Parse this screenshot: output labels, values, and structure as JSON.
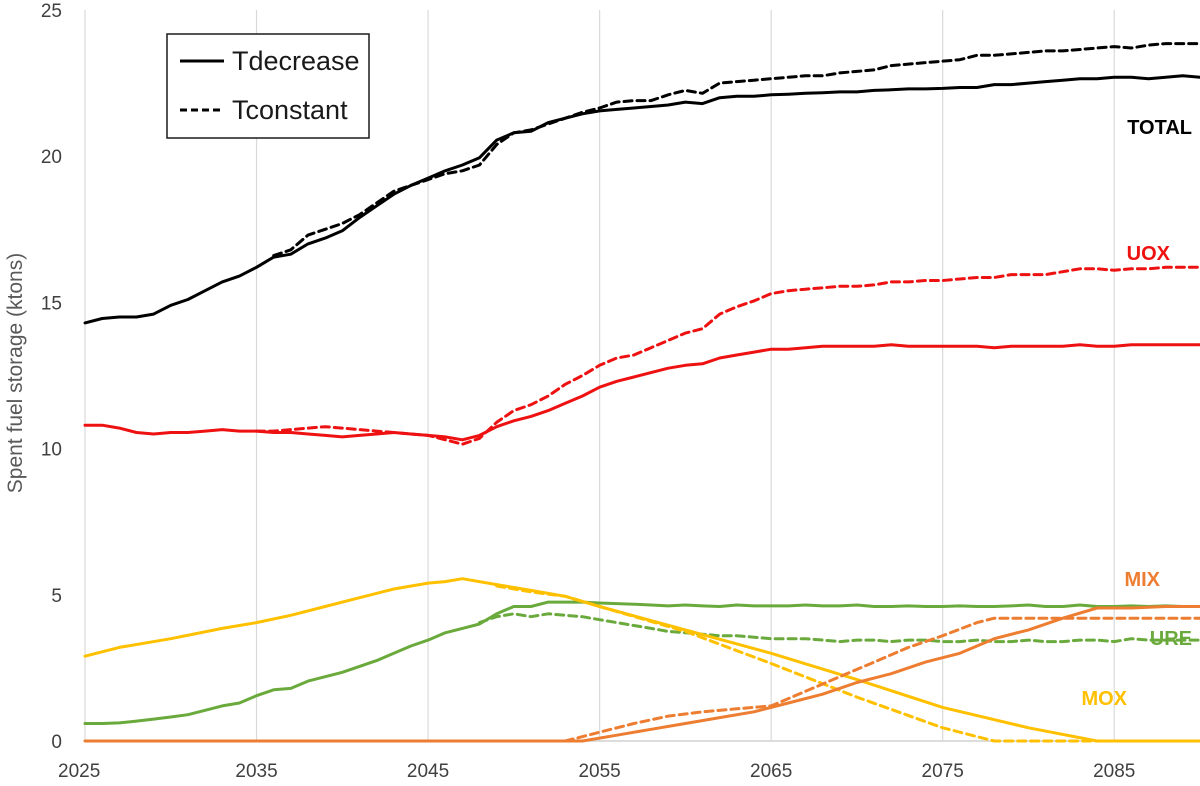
{
  "chart_data": {
    "type": "line",
    "title": "",
    "xlabel": "",
    "ylabel": "Spent fuel storage (ktons)",
    "xlim": [
      2025,
      2090
    ],
    "ylim": [
      0,
      25
    ],
    "xticks": [
      2025,
      2035,
      2045,
      2055,
      2065,
      2075,
      2085
    ],
    "yticks": [
      0,
      5,
      10,
      15,
      20,
      25
    ],
    "grid": "vertical",
    "legend": {
      "placement": "top-left",
      "entries": [
        {
          "label": "Tdecrease",
          "style": "solid"
        },
        {
          "label": "Tconstant",
          "style": "dashed"
        }
      ]
    },
    "series": [
      {
        "group": "TOTAL",
        "scenario": "Tdecrease",
        "color": "#000000",
        "style": "solid",
        "x": [
          2025,
          2026,
          2027,
          2028,
          2029,
          2030,
          2031,
          2032,
          2033,
          2034,
          2035,
          2036,
          2037,
          2038,
          2039,
          2040,
          2041,
          2042,
          2043,
          2044,
          2045,
          2046,
          2047,
          2048,
          2049,
          2050,
          2051,
          2052,
          2053,
          2054,
          2055,
          2056,
          2057,
          2058,
          2059,
          2060,
          2061,
          2062,
          2063,
          2064,
          2065,
          2066,
          2067,
          2068,
          2069,
          2070,
          2071,
          2072,
          2073,
          2074,
          2075,
          2076,
          2077,
          2078,
          2079,
          2080,
          2081,
          2082,
          2083,
          2084,
          2085,
          2086,
          2087,
          2088,
          2089,
          2090
        ],
        "y": [
          14.3,
          14.45,
          14.5,
          14.5,
          14.6,
          14.9,
          15.1,
          15.4,
          15.7,
          15.9,
          16.2,
          16.55,
          16.65,
          17.0,
          17.2,
          17.45,
          17.9,
          18.3,
          18.7,
          19.0,
          19.25,
          19.5,
          19.7,
          19.95,
          20.55,
          20.8,
          20.85,
          21.15,
          21.3,
          21.45,
          21.55,
          21.6,
          21.65,
          21.7,
          21.75,
          21.85,
          21.8,
          22.0,
          22.05,
          22.05,
          22.1,
          22.12,
          22.15,
          22.17,
          22.2,
          22.2,
          22.25,
          22.27,
          22.3,
          22.3,
          22.32,
          22.35,
          22.35,
          22.45,
          22.45,
          22.5,
          22.55,
          22.6,
          22.65,
          22.65,
          22.7,
          22.7,
          22.65,
          22.7,
          22.75,
          22.7
        ]
      },
      {
        "group": "TOTAL",
        "scenario": "Tconstant",
        "color": "#000000",
        "style": "dashed",
        "x": [
          2036,
          2037,
          2038,
          2039,
          2040,
          2041,
          2042,
          2043,
          2044,
          2045,
          2046,
          2047,
          2048,
          2049,
          2050,
          2051,
          2052,
          2053,
          2054,
          2055,
          2056,
          2057,
          2058,
          2059,
          2060,
          2061,
          2062,
          2063,
          2064,
          2065,
          2066,
          2067,
          2068,
          2069,
          2070,
          2071,
          2072,
          2073,
          2074,
          2075,
          2076,
          2077,
          2078,
          2079,
          2080,
          2081,
          2082,
          2083,
          2084,
          2085,
          2086,
          2087,
          2088,
          2089,
          2090
        ],
        "y": [
          16.6,
          16.8,
          17.3,
          17.5,
          17.7,
          18.0,
          18.4,
          18.8,
          19.0,
          19.2,
          19.4,
          19.5,
          19.7,
          20.4,
          20.8,
          20.9,
          21.1,
          21.3,
          21.5,
          21.65,
          21.85,
          21.9,
          21.9,
          22.1,
          22.25,
          22.15,
          22.5,
          22.55,
          22.6,
          22.65,
          22.7,
          22.75,
          22.75,
          22.85,
          22.9,
          22.95,
          23.1,
          23.15,
          23.2,
          23.25,
          23.3,
          23.45,
          23.45,
          23.5,
          23.55,
          23.6,
          23.6,
          23.65,
          23.7,
          23.75,
          23.7,
          23.8,
          23.85,
          23.85,
          23.85
        ]
      },
      {
        "group": "UOX",
        "scenario": "Tdecrease",
        "color": "#ee1111",
        "style": "solid",
        "x": [
          2025,
          2026,
          2027,
          2028,
          2029,
          2030,
          2031,
          2032,
          2033,
          2034,
          2035,
          2036,
          2037,
          2038,
          2039,
          2040,
          2041,
          2042,
          2043,
          2044,
          2045,
          2046,
          2047,
          2048,
          2049,
          2050,
          2051,
          2052,
          2053,
          2054,
          2055,
          2056,
          2057,
          2058,
          2059,
          2060,
          2061,
          2062,
          2063,
          2064,
          2065,
          2066,
          2067,
          2068,
          2069,
          2070,
          2071,
          2072,
          2073,
          2074,
          2075,
          2076,
          2077,
          2078,
          2079,
          2080,
          2081,
          2082,
          2083,
          2084,
          2085,
          2086,
          2087,
          2088,
          2089,
          2090
        ],
        "y": [
          10.8,
          10.8,
          10.7,
          10.55,
          10.5,
          10.55,
          10.55,
          10.6,
          10.65,
          10.6,
          10.6,
          10.55,
          10.55,
          10.5,
          10.45,
          10.4,
          10.45,
          10.5,
          10.55,
          10.5,
          10.45,
          10.4,
          10.3,
          10.45,
          10.75,
          10.95,
          11.1,
          11.3,
          11.55,
          11.8,
          12.1,
          12.3,
          12.45,
          12.6,
          12.75,
          12.85,
          12.9,
          13.1,
          13.2,
          13.3,
          13.4,
          13.4,
          13.45,
          13.5,
          13.5,
          13.5,
          13.5,
          13.55,
          13.5,
          13.5,
          13.5,
          13.5,
          13.5,
          13.45,
          13.5,
          13.5,
          13.5,
          13.5,
          13.55,
          13.5,
          13.5,
          13.55,
          13.55,
          13.55,
          13.55,
          13.55
        ]
      },
      {
        "group": "UOX",
        "scenario": "Tconstant",
        "color": "#ee1111",
        "style": "dashed",
        "x": [
          2035,
          2036,
          2037,
          2038,
          2039,
          2040,
          2041,
          2042,
          2043,
          2044,
          2045,
          2046,
          2047,
          2048,
          2049,
          2050,
          2051,
          2052,
          2053,
          2054,
          2055,
          2056,
          2057,
          2058,
          2059,
          2060,
          2061,
          2062,
          2063,
          2064,
          2065,
          2066,
          2067,
          2068,
          2069,
          2070,
          2071,
          2072,
          2073,
          2074,
          2075,
          2076,
          2077,
          2078,
          2079,
          2080,
          2081,
          2082,
          2083,
          2084,
          2085,
          2086,
          2087,
          2088,
          2089,
          2090
        ],
        "y": [
          10.6,
          10.6,
          10.65,
          10.7,
          10.75,
          10.7,
          10.65,
          10.6,
          10.55,
          10.5,
          10.45,
          10.3,
          10.15,
          10.35,
          10.9,
          11.3,
          11.5,
          11.8,
          12.2,
          12.5,
          12.85,
          13.1,
          13.2,
          13.45,
          13.7,
          13.95,
          14.1,
          14.6,
          14.85,
          15.05,
          15.3,
          15.4,
          15.45,
          15.5,
          15.55,
          15.55,
          15.6,
          15.7,
          15.7,
          15.75,
          15.75,
          15.8,
          15.85,
          15.85,
          15.95,
          15.95,
          15.95,
          16.05,
          16.15,
          16.15,
          16.1,
          16.15,
          16.15,
          16.2,
          16.2,
          16.2
        ]
      },
      {
        "group": "URE",
        "scenario": "Tdecrease",
        "color": "#6aaa3c",
        "style": "solid",
        "x": [
          2025,
          2026,
          2027,
          2028,
          2029,
          2030,
          2031,
          2032,
          2033,
          2034,
          2035,
          2036,
          2037,
          2038,
          2039,
          2040,
          2041,
          2042,
          2043,
          2044,
          2045,
          2046,
          2047,
          2048,
          2049,
          2050,
          2051,
          2052,
          2053,
          2054,
          2055,
          2056,
          2057,
          2058,
          2059,
          2060,
          2061,
          2062,
          2063,
          2064,
          2065,
          2066,
          2067,
          2068,
          2069,
          2070,
          2071,
          2072,
          2073,
          2074,
          2075,
          2076,
          2077,
          2078,
          2079,
          2080,
          2081,
          2082,
          2083,
          2084,
          2085,
          2086,
          2087,
          2088,
          2089,
          2090
        ],
        "y": [
          0.6,
          0.6,
          0.62,
          0.68,
          0.75,
          0.82,
          0.9,
          1.05,
          1.2,
          1.3,
          1.55,
          1.75,
          1.8,
          2.05,
          2.2,
          2.35,
          2.55,
          2.75,
          3.0,
          3.25,
          3.45,
          3.7,
          3.85,
          4.0,
          4.35,
          4.6,
          4.6,
          4.75,
          4.75,
          4.75,
          4.72,
          4.7,
          4.68,
          4.65,
          4.62,
          4.65,
          4.62,
          4.6,
          4.65,
          4.62,
          4.62,
          4.62,
          4.65,
          4.62,
          4.62,
          4.65,
          4.6,
          4.6,
          4.62,
          4.6,
          4.6,
          4.62,
          4.6,
          4.6,
          4.62,
          4.65,
          4.6,
          4.6,
          4.65,
          4.6,
          4.6,
          4.62,
          4.6,
          4.62,
          4.6,
          4.6
        ]
      },
      {
        "group": "URE",
        "scenario": "Tconstant",
        "color": "#6aaa3c",
        "style": "dashed",
        "x": [
          2048,
          2049,
          2050,
          2051,
          2052,
          2053,
          2054,
          2055,
          2056,
          2057,
          2058,
          2059,
          2060,
          2061,
          2062,
          2063,
          2064,
          2065,
          2066,
          2067,
          2068,
          2069,
          2070,
          2071,
          2072,
          2073,
          2074,
          2075,
          2076,
          2077,
          2078,
          2079,
          2080,
          2081,
          2082,
          2083,
          2084,
          2085,
          2086,
          2087,
          2088,
          2089,
          2090
        ],
        "y": [
          4.05,
          4.25,
          4.35,
          4.25,
          4.35,
          4.3,
          4.25,
          4.15,
          4.05,
          3.95,
          3.85,
          3.75,
          3.7,
          3.65,
          3.6,
          3.6,
          3.55,
          3.5,
          3.5,
          3.5,
          3.45,
          3.4,
          3.45,
          3.45,
          3.4,
          3.45,
          3.45,
          3.4,
          3.4,
          3.45,
          3.4,
          3.4,
          3.45,
          3.4,
          3.4,
          3.45,
          3.45,
          3.4,
          3.5,
          3.45,
          3.45,
          3.45,
          3.45
        ]
      },
      {
        "group": "MOX",
        "scenario": "Tdecrease",
        "color": "#ffc000",
        "style": "solid",
        "x": [
          2025,
          2027,
          2030,
          2033,
          2035,
          2037,
          2039,
          2041,
          2043,
          2045,
          2046,
          2047,
          2049,
          2051,
          2053,
          2055,
          2060,
          2065,
          2070,
          2075,
          2080,
          2084,
          2090
        ],
        "y": [
          2.9,
          3.2,
          3.5,
          3.85,
          4.05,
          4.3,
          4.6,
          4.9,
          5.2,
          5.4,
          5.45,
          5.55,
          5.35,
          5.15,
          4.95,
          4.6,
          3.8,
          3.0,
          2.1,
          1.15,
          0.45,
          0.0,
          0.0
        ]
      },
      {
        "group": "MOX",
        "scenario": "Tconstant",
        "color": "#ffc000",
        "style": "dashed",
        "x": [
          2049,
          2051,
          2053,
          2055,
          2060,
          2065,
          2070,
          2075,
          2078,
          2080,
          2090
        ],
        "y": [
          5.3,
          5.1,
          4.95,
          4.6,
          3.75,
          2.65,
          1.5,
          0.45,
          0.0,
          0.0,
          0.0
        ]
      },
      {
        "group": "MIX",
        "scenario": "Tdecrease",
        "color": "#ed7d31",
        "style": "solid",
        "x": [
          2025,
          2030,
          2035,
          2040,
          2045,
          2050,
          2054,
          2056,
          2058,
          2060,
          2062,
          2064,
          2066,
          2068,
          2070,
          2072,
          2074,
          2076,
          2078,
          2080,
          2082,
          2084,
          2086,
          2088,
          2090
        ],
        "y": [
          0,
          0,
          0,
          0,
          0,
          0,
          0,
          0.2,
          0.4,
          0.6,
          0.8,
          1.0,
          1.3,
          1.6,
          2.0,
          2.3,
          2.7,
          3.0,
          3.5,
          3.8,
          4.2,
          4.55,
          4.55,
          4.6,
          4.6
        ]
      },
      {
        "group": "MIX",
        "scenario": "Tconstant",
        "color": "#ed7d31",
        "style": "dashed",
        "x": [
          2053,
          2055,
          2057,
          2059,
          2061,
          2063,
          2065,
          2067,
          2069,
          2071,
          2073,
          2075,
          2077,
          2078,
          2080,
          2082,
          2084,
          2086,
          2088,
          2090
        ],
        "y": [
          0,
          0.3,
          0.6,
          0.85,
          1.0,
          1.1,
          1.2,
          1.7,
          2.2,
          2.7,
          3.2,
          3.6,
          4.05,
          4.2,
          4.2,
          4.2,
          4.2,
          4.2,
          4.2,
          4.2
        ]
      }
    ],
    "annotations": [
      {
        "text": "TOTAL",
        "color": "#000000"
      },
      {
        "text": "UOX",
        "color": "#ee1111"
      },
      {
        "text": "MIX",
        "color": "#ed7d31"
      },
      {
        "text": "URE",
        "color": "#6aaa3c"
      },
      {
        "text": "MOX",
        "color": "#ffc000"
      }
    ]
  }
}
